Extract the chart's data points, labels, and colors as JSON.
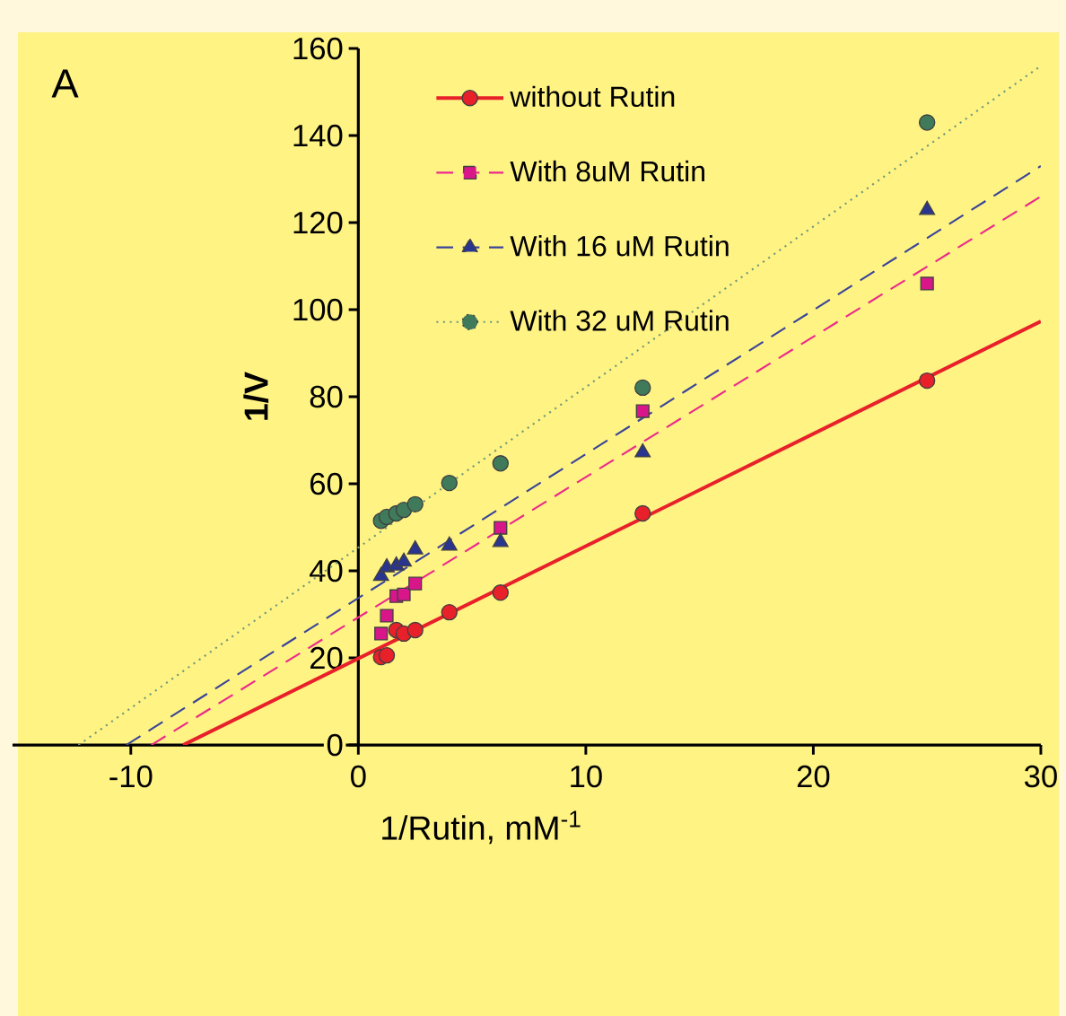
{
  "chart_data": {
    "type": "scatter",
    "xlabel": "1/Rutin, mM$^{-1}$",
    "ylabel": "1/V",
    "annotations": [
      "A"
    ],
    "xlim": [
      -15.2,
      30
    ],
    "ylim": [
      0,
      160
    ],
    "xticks": [
      -10,
      0,
      10,
      20,
      30
    ],
    "yticks": [
      0,
      20,
      40,
      60,
      80,
      100,
      120,
      140,
      160
    ],
    "legend": "top",
    "series": [
      {
        "marker": "circle",
        "color": "#e8202a",
        "x": [
          1,
          1.25,
          1.67,
          2,
          2.5,
          4,
          6.25,
          12.5,
          25
        ],
        "values": [
          20.2,
          20.6,
          26.4,
          25.6,
          26.4,
          30.5,
          35.0,
          53.2,
          83.7
        ]
      },
      {
        "type": "line",
        "name": "without Rutin",
        "line_style": "solid",
        "color": "#e8202a",
        "x": [
          -7.7,
          30
        ],
        "values": [
          0,
          97.3
        ]
      },
      {
        "marker": "square",
        "color": "#d8168a",
        "x": [
          1,
          1.25,
          1.67,
          2,
          2.5,
          4,
          6.25,
          12.5,
          25
        ],
        "values": [
          25.6,
          29.7,
          34.2,
          34.6,
          37.1,
          null,
          49.9,
          76.7,
          106
        ]
      },
      {
        "type": "line",
        "name": "With 8uM Rutin",
        "line_style": "dashed",
        "color": "#ec2a8a",
        "x": [
          -9.1,
          30
        ],
        "values": [
          0,
          126
        ]
      },
      {
        "marker": "triangle",
        "color": "#2a3590",
        "x": [
          1,
          1.25,
          1.67,
          2,
          2.5,
          4,
          6.25,
          12.5,
          25
        ],
        "values": [
          38.8,
          40.8,
          41.2,
          42.1,
          44.9,
          45.8,
          46.6,
          67.2,
          122.9
        ]
      },
      {
        "type": "line",
        "name": "With 16 uM Rutin",
        "line_style": "dashed",
        "color": "#3a4598",
        "x": [
          -10.2,
          30
        ],
        "values": [
          0,
          133
        ]
      },
      {
        "marker": "circle",
        "color": "#3f7a5a",
        "x": [
          1,
          1.25,
          1.67,
          2,
          2.5,
          4,
          6.25,
          12.5,
          25
        ],
        "values": [
          51.5,
          52.4,
          53.2,
          54.0,
          55.3,
          60.2,
          64.7,
          82.1,
          143
        ]
      },
      {
        "type": "line",
        "name": "With 32 uM Rutin",
        "line_style": "dotted",
        "color": "#6f9a78",
        "x": [
          -12.3,
          30
        ],
        "values": [
          0,
          156
        ]
      }
    ]
  }
}
